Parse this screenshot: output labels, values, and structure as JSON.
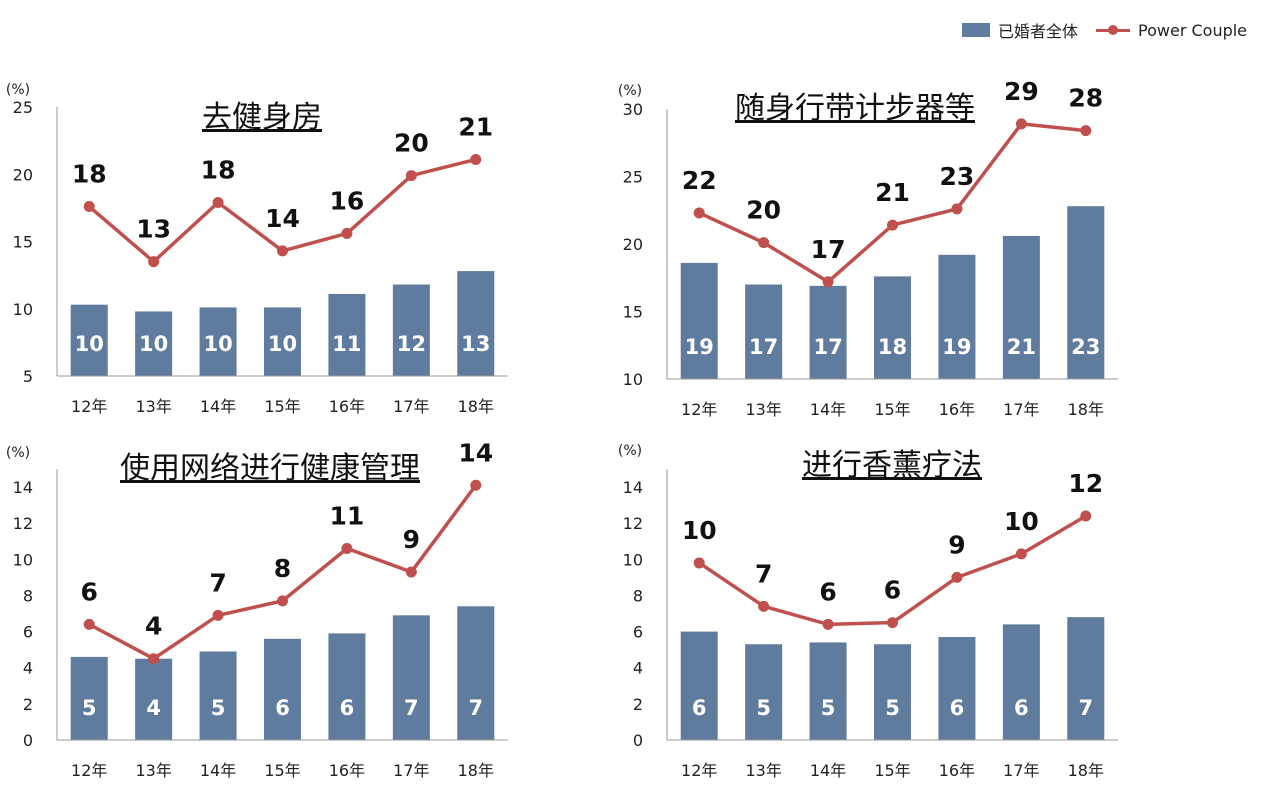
{
  "legend": {
    "bar": "已婚者全体",
    "line": "Power Couple"
  },
  "colors": {
    "bar": "#5f7b9e",
    "line": "#c0504d",
    "axis": "#999999"
  },
  "chart_data": [
    {
      "type": "bar",
      "title": "去健身房",
      "unit": "(%)",
      "categories": [
        "12年",
        "13年",
        "14年",
        "15年",
        "16年",
        "17年",
        "18年"
      ],
      "ylim": [
        5,
        25
      ],
      "yticks": [
        5,
        10,
        15,
        20,
        25
      ],
      "series": [
        {
          "name": "已婚者全体",
          "type": "bar",
          "values": [
            10.3,
            9.8,
            10.1,
            10.1,
            11.1,
            11.8,
            12.8
          ],
          "labels": [
            "10",
            "10",
            "10",
            "10",
            "11",
            "12",
            "13"
          ]
        },
        {
          "name": "Power Couple",
          "type": "line",
          "values": [
            17.6,
            13.5,
            17.9,
            14.3,
            15.6,
            19.9,
            21.1
          ],
          "labels": [
            "18",
            "13",
            "18",
            "14",
            "16",
            "20",
            "21"
          ]
        }
      ]
    },
    {
      "type": "bar",
      "title": "随身行带计步器等",
      "unit": "(%)",
      "categories": [
        "12年",
        "13年",
        "14年",
        "15年",
        "16年",
        "17年",
        "18年"
      ],
      "ylim": [
        10,
        30
      ],
      "yticks": [
        10,
        15,
        20,
        25,
        30
      ],
      "series": [
        {
          "name": "已婚者全体",
          "type": "bar",
          "values": [
            18.6,
            17.0,
            16.9,
            17.6,
            19.2,
            20.6,
            22.8
          ],
          "labels": [
            "19",
            "17",
            "17",
            "18",
            "19",
            "21",
            "23"
          ]
        },
        {
          "name": "Power Couple",
          "type": "line",
          "values": [
            22.3,
            20.1,
            17.2,
            21.4,
            22.6,
            28.9,
            28.4
          ],
          "labels": [
            "22",
            "20",
            "17",
            "21",
            "23",
            "29",
            "28"
          ]
        }
      ]
    },
    {
      "type": "bar",
      "title": "使用网络进行健康管理",
      "unit": "(%)",
      "categories": [
        "12年",
        "13年",
        "14年",
        "15年",
        "16年",
        "17年",
        "18年"
      ],
      "ylim": [
        0,
        15
      ],
      "yticks": [
        0,
        2,
        4,
        6,
        8,
        10,
        12,
        14
      ],
      "series": [
        {
          "name": "已婚者全体",
          "type": "bar",
          "values": [
            4.6,
            4.5,
            4.9,
            5.6,
            5.9,
            6.9,
            7.4
          ],
          "labels": [
            "5",
            "4",
            "5",
            "6",
            "6",
            "7",
            "7"
          ]
        },
        {
          "name": "Power Couple",
          "type": "line",
          "values": [
            6.4,
            4.5,
            6.9,
            7.7,
            10.6,
            9.3,
            14.1
          ],
          "labels": [
            "6",
            "4",
            "7",
            "8",
            "11",
            "9",
            "14"
          ]
        }
      ]
    },
    {
      "type": "bar",
      "title": "进行香薰疗法",
      "unit": "(%)",
      "categories": [
        "12年",
        "13年",
        "14年",
        "15年",
        "16年",
        "17年",
        "18年"
      ],
      "ylim": [
        0,
        15
      ],
      "yticks": [
        0,
        2,
        4,
        6,
        8,
        10,
        12,
        14
      ],
      "series": [
        {
          "name": "已婚者全体",
          "type": "bar",
          "values": [
            6.0,
            5.3,
            5.4,
            5.3,
            5.7,
            6.4,
            6.8
          ],
          "labels": [
            "6",
            "5",
            "5",
            "5",
            "6",
            "6",
            "7"
          ]
        },
        {
          "name": "Power Couple",
          "type": "line",
          "values": [
            9.8,
            7.4,
            6.4,
            6.5,
            9.0,
            10.3,
            12.4
          ],
          "labels": [
            "10",
            "7",
            "6",
            "6",
            "9",
            "10",
            "12"
          ]
        }
      ]
    }
  ]
}
